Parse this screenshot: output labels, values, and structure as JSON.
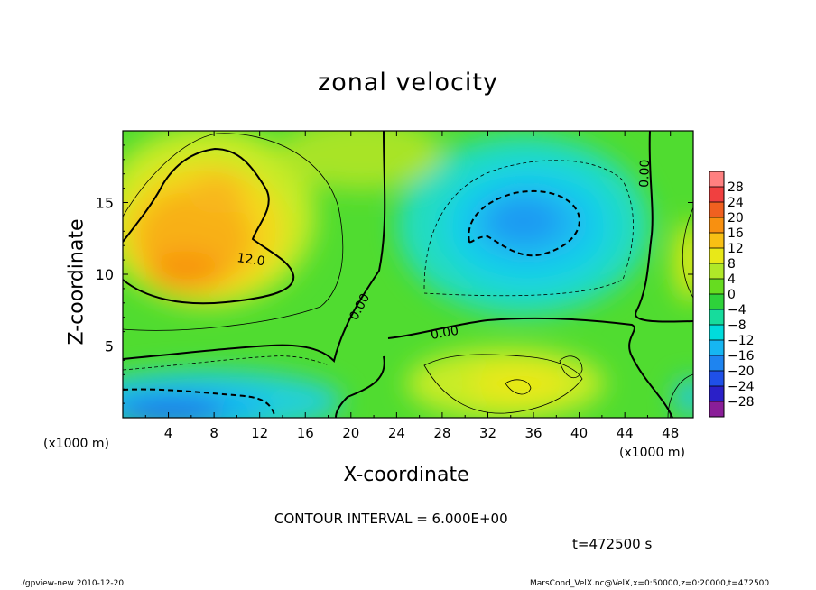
{
  "title": "zonal velocity",
  "contour_interval": "CONTOUR INTERVAL = 6.000E+00",
  "time_label": "t=472500 s",
  "footer_left": "./gpview-new   2010-12-20",
  "footer_right": "MarsCond_VelX.nc@VelX,x=0:50000,z=0:20000,t=472500",
  "chart_data": {
    "type": "heatmap",
    "title": "zonal velocity",
    "xlabel": "X-coordinate",
    "ylabel": "Z-coordinate",
    "x_unit": "(x1000 m)",
    "xlim": [
      0,
      50
    ],
    "ylim": [
      0,
      20
    ],
    "x_ticks": [
      4,
      8,
      12,
      16,
      20,
      24,
      28,
      32,
      36,
      40,
      44,
      48
    ],
    "y_ticks": [
      5,
      10,
      15
    ],
    "colorbar_ticks": [
      28,
      24,
      20,
      16,
      12,
      8,
      4,
      0,
      -4,
      -8,
      -12,
      -16,
      -20,
      -24,
      -28
    ],
    "colorbar_colors": [
      "#8a1e98",
      "#2a20c8",
      "#1f50e8",
      "#1e84f0",
      "#16b6f2",
      "#00dcdc",
      "#16dc9c",
      "#2ed23a",
      "#66dc20",
      "#b0e828",
      "#e8e818",
      "#f8c014",
      "#f89010",
      "#f06020",
      "#f04040",
      "#ff8080"
    ],
    "contour_labels": [
      {
        "text": "12.0",
        "x": 11,
        "y": 11.5
      },
      {
        "text": "0.00",
        "x": 21.5,
        "y": 8.5
      },
      {
        "text": "0.00",
        "x": 29,
        "y": 6.8
      },
      {
        "text": "0.00",
        "x": 46,
        "y": 18
      }
    ],
    "features": [
      {
        "name": "positive maximum",
        "x": 7,
        "y": 12,
        "value": 16
      },
      {
        "name": "negative minimum",
        "x": 36,
        "y": 14,
        "value": -12
      },
      {
        "name": "near-surface negative",
        "x": 6,
        "y": 1.5,
        "value": -18
      }
    ]
  }
}
